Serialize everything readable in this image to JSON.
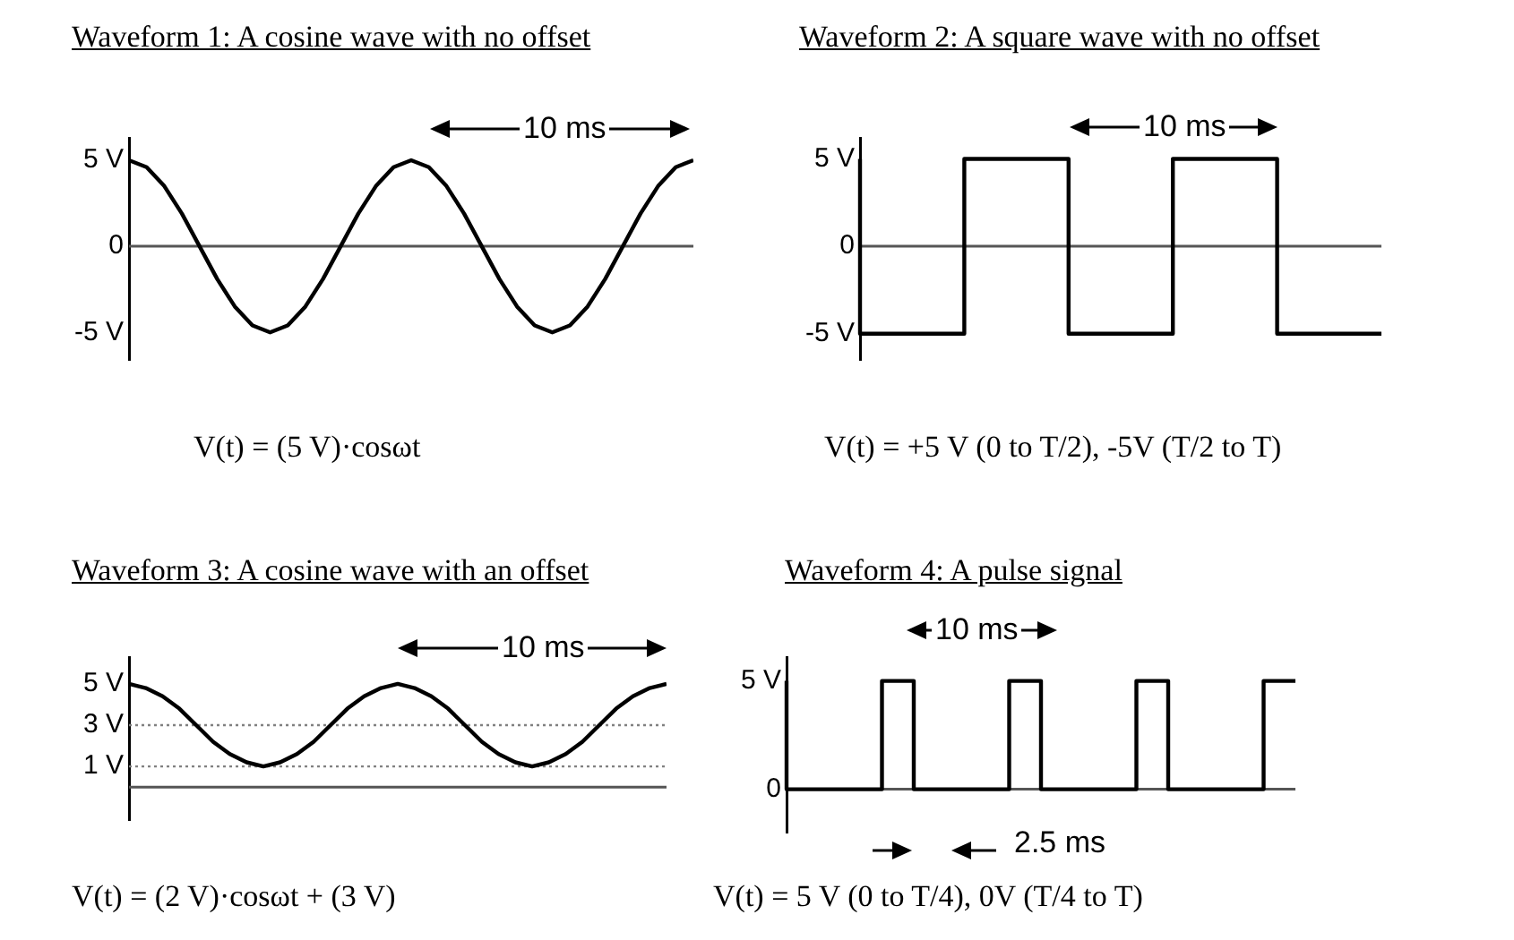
{
  "chart_data": [
    {
      "type": "line",
      "title": "Waveform 1: A cosine wave with no offset",
      "categories": [
        null,
        null,
        null,
        null,
        null,
        null,
        null,
        null,
        null,
        null,
        null,
        null,
        null,
        null,
        null,
        null,
        null,
        null,
        null,
        null,
        null,
        null,
        null,
        null,
        null,
        null,
        null,
        null,
        null,
        null,
        null,
        null,
        null
      ],
      "series": [
        {
          "color": "#000000",
          "values": [
            5,
            4.6,
            3.5,
            1.9,
            0,
            -1.9,
            -3.5,
            -4.6,
            -5,
            -4.6,
            -3.5,
            -1.9,
            0,
            1.9,
            3.5,
            4.6,
            5,
            4.6,
            3.5,
            1.9,
            0,
            -1.9,
            -3.5,
            -4.6,
            -5,
            -4.6,
            -3.5,
            -1.9,
            0,
            1.9,
            3.5,
            4.6,
            5
          ]
        }
      ],
      "ylim": [
        -6.6,
        6.3
      ],
      "yticks": [
        {
          "value": 5,
          "label": "5 V"
        },
        {
          "value": 0,
          "label": "0"
        },
        {
          "value": -5,
          "label": "-5 V"
        }
      ],
      "tick_labels": "y",
      "annotations": [
        "10 ms",
        "V(t) = (5 V)·cosωt"
      ]
    },
    {
      "type": "step",
      "title": "Waveform 2: A square wave with no offset",
      "categories": [
        null,
        null,
        null,
        null,
        null,
        null
      ],
      "series": [
        {
          "color": "#000000",
          "values": [
            5,
            -5,
            5,
            -5,
            5,
            -5
          ]
        }
      ],
      "ylim": [
        -6.5,
        6.2
      ],
      "yticks": [
        {
          "value": 5,
          "label": "5 V"
        },
        {
          "value": 0,
          "label": "0"
        },
        {
          "value": -5,
          "label": "-5 V"
        }
      ],
      "tick_labels": "y",
      "annotations": [
        "10 ms",
        "V(t) = +5 V (0 to T/2), -5V (T/2 to T)"
      ]
    },
    {
      "type": "line",
      "title": "Waveform 3: A cosine wave with an offset",
      "categories": [
        null,
        null,
        null,
        null,
        null,
        null,
        null,
        null,
        null,
        null,
        null,
        null,
        null,
        null,
        null,
        null,
        null,
        null,
        null,
        null,
        null,
        null,
        null,
        null,
        null,
        null,
        null,
        null,
        null,
        null,
        null,
        null,
        null
      ],
      "series": [
        {
          "color": "#000000",
          "values": [
            5,
            4.8,
            4.4,
            3.8,
            3,
            2.2,
            1.6,
            1.2,
            1,
            1.2,
            1.6,
            2.2,
            3,
            3.8,
            4.4,
            4.8,
            5,
            4.8,
            4.4,
            3.8,
            3,
            2.2,
            1.6,
            1.2,
            1,
            1.2,
            1.6,
            2.2,
            3,
            3.8,
            4.4,
            4.8,
            5
          ]
        }
      ],
      "ylim": [
        -1.6,
        6.3
      ],
      "yticks": [
        {
          "value": 5,
          "label": "5 V"
        },
        {
          "value": 3,
          "label": "3 V"
        },
        {
          "value": 1,
          "label": "1 V"
        },
        {
          "value": 0,
          "label": null
        }
      ],
      "tick_labels": "y",
      "ref_lines": [
        {
          "axis": "y",
          "value": 3,
          "color": "#808080",
          "line_style": "dotted"
        },
        {
          "axis": "y",
          "value": 1,
          "color": "#808080",
          "line_style": "dotted"
        }
      ],
      "annotations": [
        "10 ms",
        "V(t) = (2 V)·cosωt + (3 V)"
      ]
    },
    {
      "type": "step",
      "title": "Waveform 4: A pulse signal",
      "categories": [
        null,
        null,
        null,
        null,
        null,
        null,
        null,
        null,
        null,
        null,
        null,
        null,
        null,
        null,
        null,
        null,
        null
      ],
      "series": [
        {
          "color": "#000000",
          "values": [
            5,
            0,
            0,
            0,
            5,
            0,
            0,
            0,
            5,
            0,
            0,
            0,
            5,
            0,
            0,
            0,
            5
          ]
        }
      ],
      "ylim": [
        -2,
        6.1
      ],
      "yticks": [
        {
          "value": 5,
          "label": "5 V"
        },
        {
          "value": 0,
          "label": "0"
        }
      ],
      "tick_labels": "y",
      "annotations": [
        "10 ms",
        "2.5 ms",
        "V(t) = 5 V (0 to T/4), 0V (T/4 to T)"
      ]
    }
  ]
}
